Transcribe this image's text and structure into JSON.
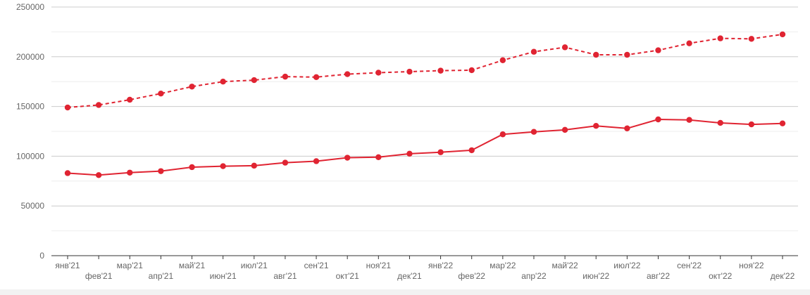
{
  "chart_data": {
    "type": "line",
    "title": "",
    "xlabel": "",
    "ylabel": "",
    "ylim": [
      0,
      250000
    ],
    "yticks": [
      0,
      50000,
      100000,
      150000,
      200000,
      250000
    ],
    "ytick_labels": [
      "0",
      "50000",
      "100000",
      "150000",
      "200000",
      "250000"
    ],
    "grid": true,
    "legend": "none",
    "categories": [
      "янв'21",
      "фев'21",
      "мар'21",
      "апр'21",
      "май'21",
      "июн'21",
      "июл'21",
      "авг'21",
      "сен'21",
      "окт'21",
      "ноя'21",
      "дек'21",
      "янв'22",
      "фев'22",
      "мар'22",
      "апр'22",
      "май'22",
      "июн'22",
      "июл'22",
      "авг'22",
      "сен'22",
      "окт'22",
      "ноя'22",
      "дек'22"
    ],
    "series": [
      {
        "style": "dashed",
        "color": "#e02432",
        "values": [
          149000,
          151500,
          156800,
          163000,
          170000,
          175000,
          176500,
          180000,
          179500,
          182500,
          184000,
          185000,
          186000,
          186500,
          196500,
          205000,
          209500,
          202000,
          202000,
          206500,
          213500,
          218500,
          218000,
          222500
        ]
      },
      {
        "style": "solid",
        "color": "#e02432",
        "values": [
          83000,
          81000,
          83500,
          85000,
          89000,
          90000,
          90500,
          93500,
          95000,
          98500,
          99000,
          102500,
          104000,
          106000,
          122000,
          124500,
          126500,
          130500,
          128000,
          137000,
          136500,
          133500,
          132000,
          133000
        ]
      }
    ]
  }
}
